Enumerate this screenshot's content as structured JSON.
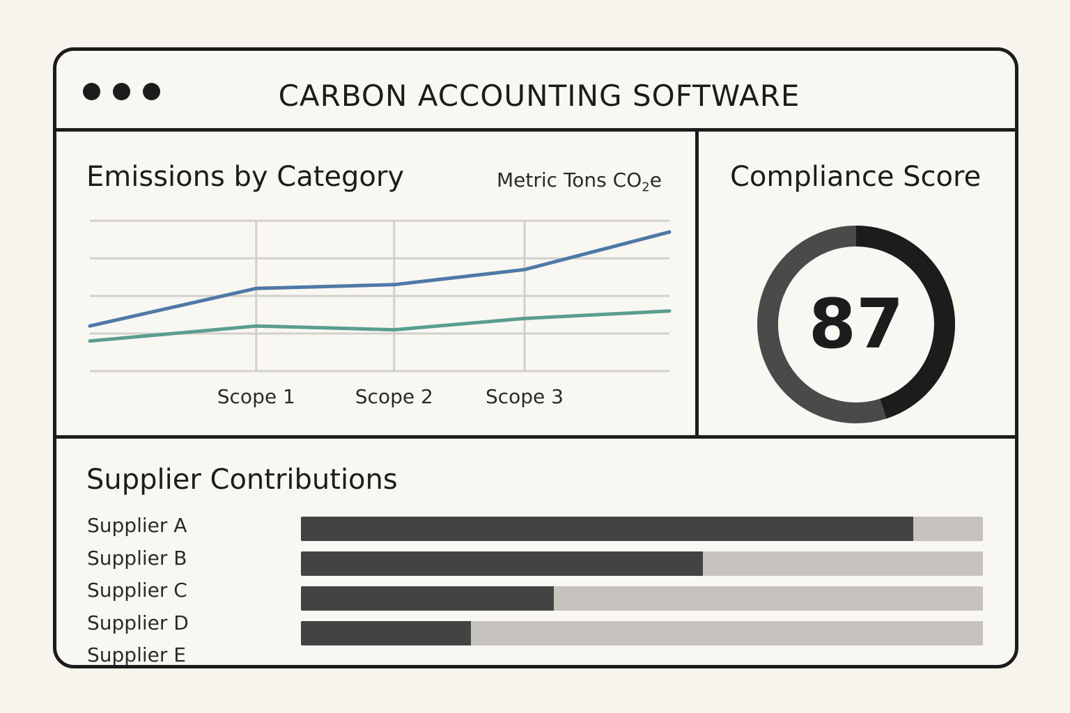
{
  "window": {
    "title": "CARBON ACCOUNTING SOFTWARE",
    "dots": [
      "window-dot",
      "window-dot",
      "window-dot"
    ]
  },
  "emissions": {
    "title": "Emissions by Category",
    "units_prefix": "Metric Tons CO",
    "units_sub": "2",
    "units_suffix": "e",
    "x_labels": [
      "Scope 1",
      "Scope 2",
      "Scope 3"
    ]
  },
  "chart_data": {
    "type": "line",
    "title": "Emissions by Category",
    "ylabel": "Metric Tons CO₂e",
    "categories": [
      "",
      "Scope 1",
      "Scope 2",
      "Scope 3",
      ""
    ],
    "series": [
      {
        "values": [
          1.2,
          2.2,
          2.3,
          2.7,
          3.7
        ],
        "color": "#4f78a6"
      },
      {
        "values": [
          0.8,
          1.2,
          1.1,
          1.4,
          1.6
        ],
        "color": "#5a9e90"
      }
    ],
    "ylim": [
      0,
      4
    ],
    "grid": true,
    "legend": "none"
  },
  "compliance": {
    "title": "Compliance Score",
    "score": "87",
    "score_value": 87,
    "ring_dark": "#1c1c1c",
    "ring_light": "#4a4a4a"
  },
  "suppliers": {
    "title": "Supplier Contributions",
    "items": [
      {
        "label": "Supplier A",
        "fraction": 0.898
      },
      {
        "label": "Supplier B",
        "fraction": 0.589
      },
      {
        "label": "Supplier C",
        "fraction": 0.371
      },
      {
        "label": "Supplier D",
        "fraction": 0.249
      },
      {
        "label": "Supplier E",
        "fraction": null
      }
    ]
  }
}
